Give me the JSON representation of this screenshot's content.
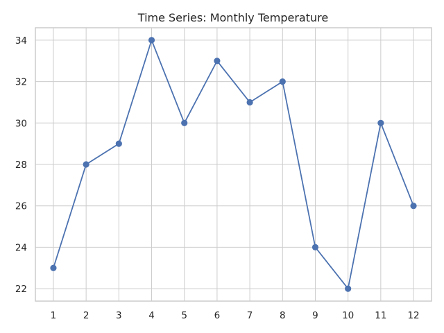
{
  "chart_data": {
    "type": "line",
    "title": "Time Series: Monthly Temperature",
    "xlabel": "",
    "ylabel": "",
    "categories": [
      "1",
      "2",
      "3",
      "4",
      "5",
      "6",
      "7",
      "8",
      "9",
      "10",
      "11",
      "12"
    ],
    "x": [
      1,
      2,
      3,
      4,
      5,
      6,
      7,
      8,
      9,
      10,
      11,
      12
    ],
    "series": [
      {
        "name": "Monthly Temperature",
        "values": [
          23,
          28,
          29,
          34,
          30,
          33,
          31,
          32,
          24,
          22,
          30,
          26
        ],
        "color": "#4c72b0",
        "marker": "circle"
      }
    ],
    "xlim": [
      0.45,
      12.55
    ],
    "ylim": [
      21.4,
      34.6
    ],
    "yticks": [
      22,
      24,
      26,
      28,
      30,
      32,
      34
    ],
    "xticks": [
      1,
      2,
      3,
      4,
      5,
      6,
      7,
      8,
      9,
      10,
      11,
      12
    ],
    "grid": true,
    "legend": null
  },
  "style": {
    "line_color": "#4c72b0",
    "grid_color": "#cccccc",
    "text_color": "#262626"
  }
}
